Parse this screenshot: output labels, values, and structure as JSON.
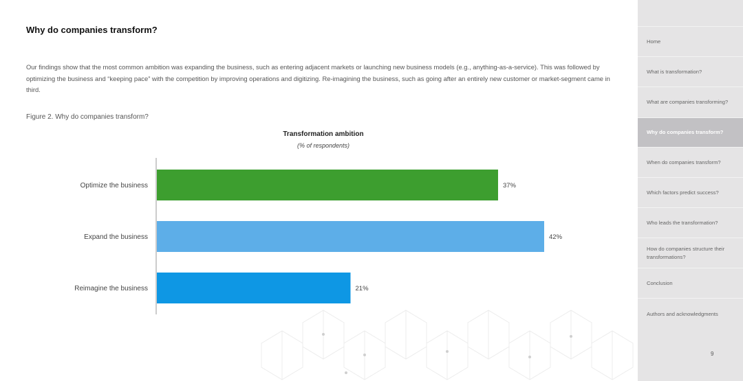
{
  "page": {
    "title": "Why do companies transform?",
    "intro": "Our findings show that the most common ambition was expanding the business, such as entering adjacent markets or launching new business models (e.g., anything-as-a-service). This was followed by optimizing the business and “keeping pace” with the competition by improving operations and digitizing. Re-imagining the business, such as going after an entirely new customer or market-segment came in third.",
    "figure_caption": "Figure 2. Why do companies transform?"
  },
  "chart_data": {
    "type": "bar",
    "orientation": "horizontal",
    "title": "Transformation ambition",
    "subtitle": "(% of respondents)",
    "categories": [
      "Optimize the business",
      "Expand the business",
      "Reimagine the business"
    ],
    "values": [
      37,
      42,
      21
    ],
    "value_labels": [
      "37%",
      "42%",
      "21%"
    ],
    "colors": [
      "#3d9e2f",
      "#5daee8",
      "#0e97e4"
    ],
    "xlim": [
      0,
      45
    ],
    "grid": false,
    "legend": "none"
  },
  "sidebar": {
    "items": [
      {
        "label": "Home",
        "active": false
      },
      {
        "label": "What is transformation?",
        "active": false
      },
      {
        "label": "What are companies transforming?",
        "active": false
      },
      {
        "label": "Why do companies transform?",
        "active": true
      },
      {
        "label": "When do companies transform?",
        "active": false
      },
      {
        "label": "Which factors predict success?",
        "active": false
      },
      {
        "label": "Who leads the transformation?",
        "active": false
      },
      {
        "label": "How do companies structure their transformations?",
        "active": false
      },
      {
        "label": "Conclusion",
        "active": false
      },
      {
        "label": "Authors and acknowledgments",
        "active": false
      }
    ],
    "page_number": "9"
  }
}
